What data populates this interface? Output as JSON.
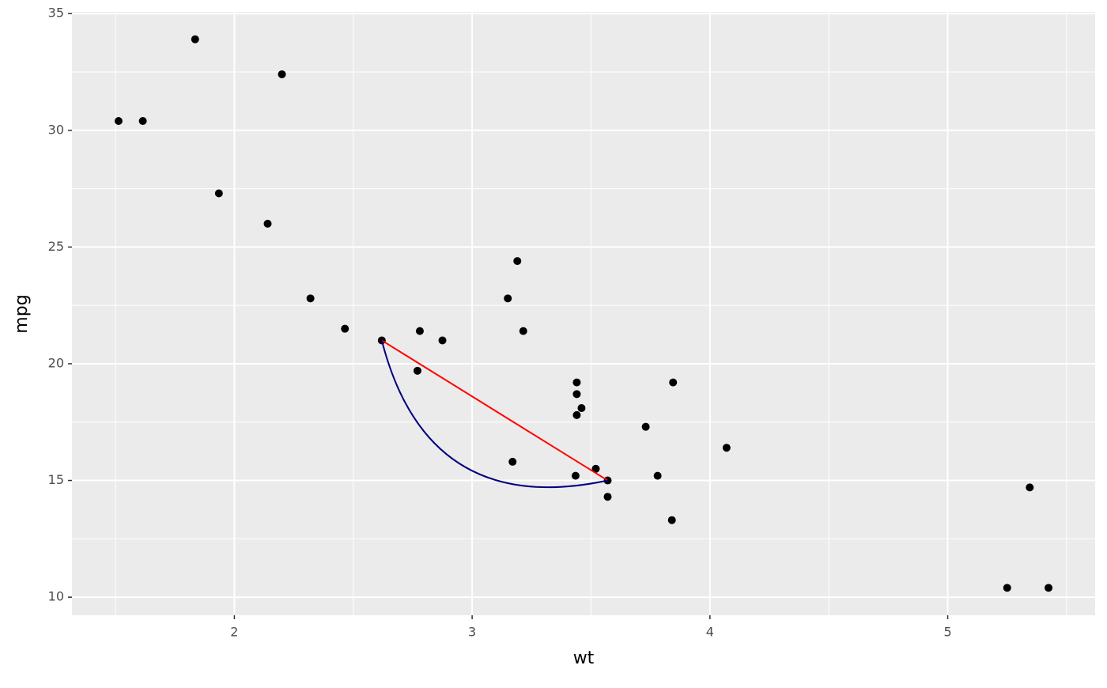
{
  "chart_data": {
    "type": "scatter",
    "x_label": "wt",
    "y_label": "mpg",
    "series": [
      {
        "color": "#000000",
        "x": [
          2.62,
          2.875,
          2.32,
          3.215,
          3.44,
          3.46,
          3.57,
          3.19,
          3.15,
          3.44,
          3.44,
          4.07,
          3.73,
          3.78,
          5.25,
          5.424,
          5.345,
          2.2,
          1.615,
          1.835,
          2.465,
          3.52,
          3.435,
          3.84,
          3.845,
          1.935,
          2.14,
          1.513,
          3.17,
          2.77,
          3.57,
          2.78
        ],
        "values": [
          21.0,
          21.0,
          22.8,
          21.4,
          18.7,
          18.1,
          14.3,
          24.4,
          22.8,
          19.2,
          17.8,
          16.4,
          17.3,
          15.2,
          10.4,
          10.4,
          14.7,
          32.4,
          30.4,
          33.9,
          21.5,
          15.5,
          15.2,
          13.3,
          19.2,
          27.3,
          26.0,
          30.4,
          15.8,
          19.7,
          15.0,
          21.4
        ]
      }
    ],
    "annotations": [
      {
        "x": 2.62,
        "y": 21,
        "xend": 3.57,
        "yend": 15,
        "color": "#ff0000",
        "curvature": 0
      },
      {
        "x": 2.62,
        "y": 21,
        "xend": 3.57,
        "yend": 15,
        "color": "#000080",
        "curvature": 1
      }
    ],
    "xlim": [
      1.317,
      5.62
    ],
    "ylim": [
      9.225,
      35.075
    ],
    "xticks": [
      2,
      3,
      4,
      5
    ],
    "yticks": [
      10,
      15,
      20,
      25,
      30,
      35
    ],
    "grid": true
  }
}
